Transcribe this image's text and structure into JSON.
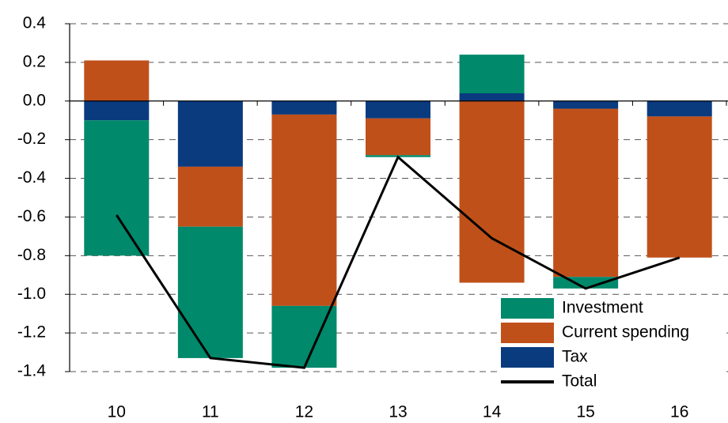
{
  "chart_data": {
    "type": "bar",
    "stacked": true,
    "categories": [
      "10",
      "11",
      "12",
      "13",
      "14",
      "15",
      "16"
    ],
    "series": [
      {
        "name": "Investment",
        "color": "#00896b",
        "values": [
          -0.7,
          -0.68,
          -0.32,
          -0.01,
          0.2,
          -0.06,
          0.0
        ]
      },
      {
        "name": "Current spending",
        "color": "#c0501a",
        "values": [
          0.21,
          -0.31,
          -0.99,
          -0.19,
          -0.94,
          -0.87,
          -0.73
        ]
      },
      {
        "name": "Tax",
        "color": "#0a3b7f",
        "values": [
          -0.1,
          -0.34,
          -0.07,
          -0.09,
          0.04,
          -0.04,
          -0.08
        ]
      },
      {
        "name": "Total",
        "type": "line",
        "color": "#000000",
        "values": [
          -0.59,
          -1.33,
          -1.38,
          -0.29,
          -0.71,
          -0.97,
          -0.81
        ]
      }
    ],
    "ylim": [
      -1.4,
      0.4
    ],
    "yticks": [
      0.4,
      0.2,
      {
        "value": 0,
        "label": "0.0"
      },
      -0.2,
      -0.4,
      -0.6,
      -0.8,
      {
        "value": -1,
        "label": "-1.0"
      },
      -1.2,
      -1.4
    ],
    "grid": true,
    "legend": "lower right"
  }
}
